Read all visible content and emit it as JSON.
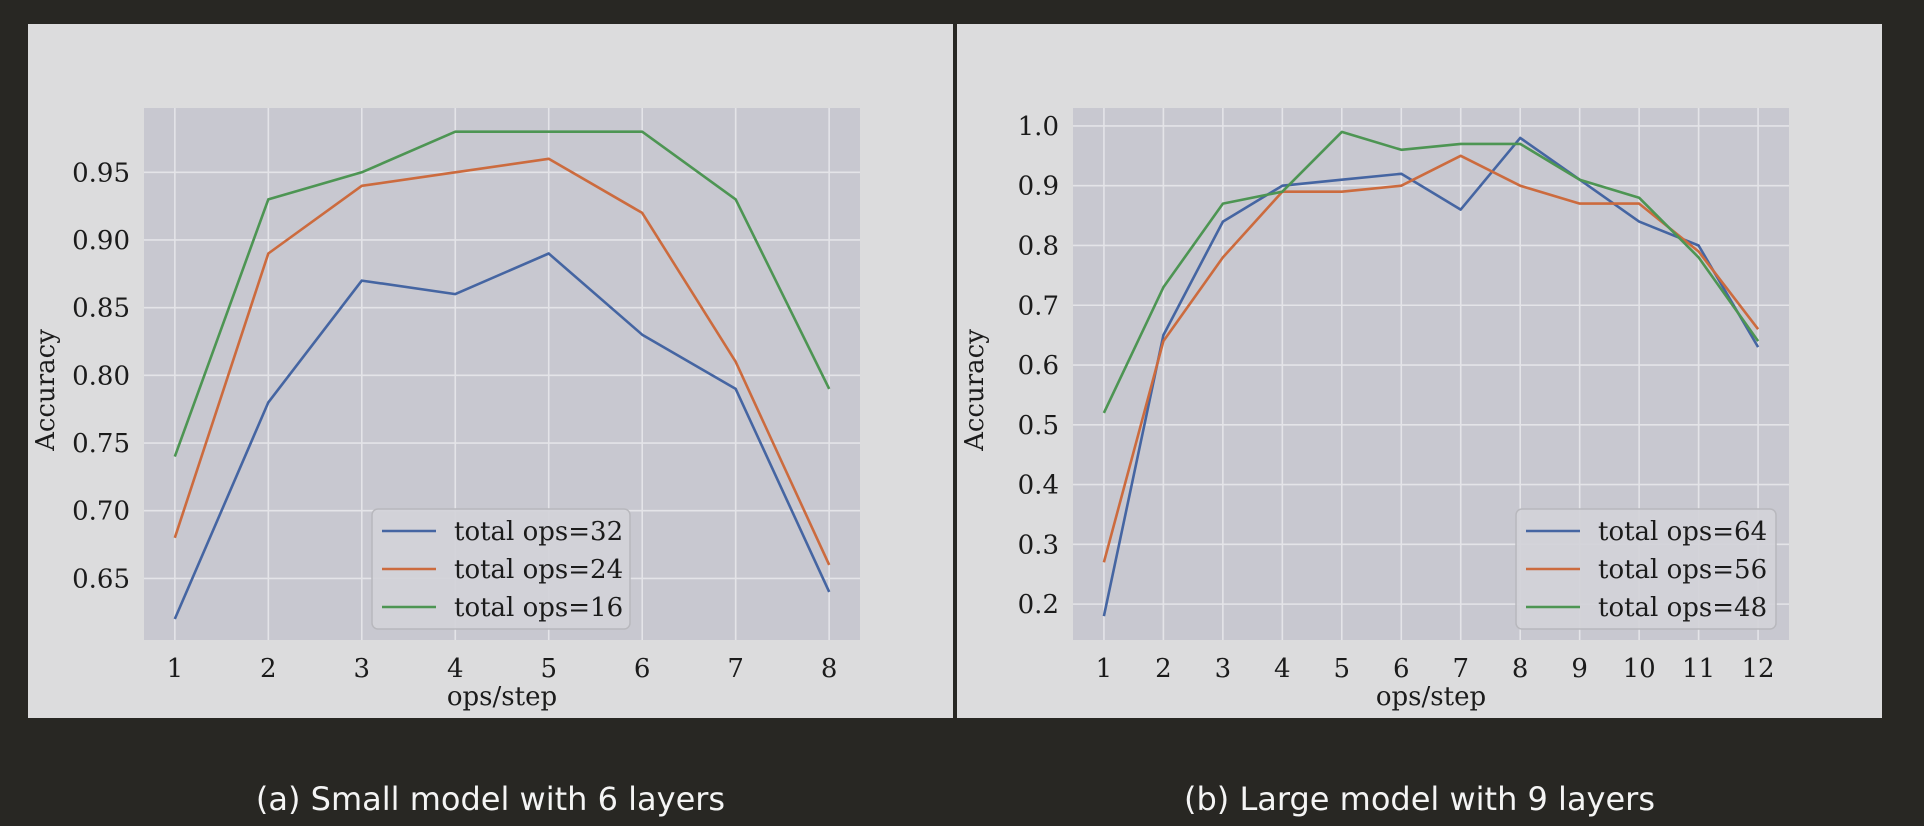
{
  "captions": {
    "a": "(a)  Small model with 6 layers",
    "b": "(b)  Large model with 9 layers"
  },
  "colors": {
    "panel_bg": "#dcdcdd",
    "plot_bg": "#c8c8d0",
    "grid": "#e4e4e8",
    "series": [
      "#4565a2",
      "#cc6b3e",
      "#4d9553"
    ]
  },
  "chart_data": [
    {
      "type": "line",
      "title": "",
      "xlabel": "ops/step",
      "ylabel": "Accuracy",
      "x": [
        1,
        2,
        3,
        4,
        5,
        6,
        7,
        8
      ],
      "xlim": [
        0.67,
        8.33
      ],
      "ylim": [
        0.6045,
        0.9975
      ],
      "yticks": [
        0.65,
        0.7,
        0.75,
        0.8,
        0.85,
        0.9,
        0.95
      ],
      "ytick_labels": [
        "0.65",
        "0.70",
        "0.75",
        "0.80",
        "0.85",
        "0.90",
        "0.95"
      ],
      "grid": true,
      "legend_position": "lower-center",
      "series": [
        {
          "name": "total ops=32",
          "values": [
            0.62,
            0.78,
            0.87,
            0.86,
            0.89,
            0.83,
            0.79,
            0.64
          ]
        },
        {
          "name": "total ops=24",
          "values": [
            0.68,
            0.89,
            0.94,
            0.95,
            0.96,
            0.92,
            0.81,
            0.66
          ]
        },
        {
          "name": "total ops=16",
          "values": [
            0.74,
            0.93,
            0.95,
            0.98,
            0.98,
            0.98,
            0.93,
            0.79
          ]
        }
      ]
    },
    {
      "type": "line",
      "title": "",
      "xlabel": "ops/step",
      "ylabel": "Accuracy",
      "x": [
        1,
        2,
        3,
        4,
        5,
        6,
        7,
        8,
        9,
        10,
        11,
        12
      ],
      "xlim": [
        0.48,
        12.52
      ],
      "ylim": [
        0.14,
        1.03
      ],
      "yticks": [
        0.2,
        0.3,
        0.4,
        0.5,
        0.6,
        0.7,
        0.8,
        0.9,
        1.0
      ],
      "ytick_labels": [
        "0.2",
        "0.3",
        "0.4",
        "0.5",
        "0.6",
        "0.7",
        "0.8",
        "0.9",
        "1.0"
      ],
      "grid": true,
      "legend_position": "lower-right",
      "series": [
        {
          "name": "total ops=64",
          "values": [
            0.18,
            0.65,
            0.84,
            0.9,
            0.91,
            0.92,
            0.86,
            0.98,
            0.91,
            0.84,
            0.8,
            0.63
          ]
        },
        {
          "name": "total ops=56",
          "values": [
            0.27,
            0.64,
            0.78,
            0.89,
            0.89,
            0.9,
            0.95,
            0.9,
            0.87,
            0.87,
            0.79,
            0.66
          ]
        },
        {
          "name": "total ops=48",
          "values": [
            0.52,
            0.73,
            0.87,
            0.89,
            0.99,
            0.96,
            0.97,
            0.97,
            0.91,
            0.88,
            0.78,
            0.64
          ]
        }
      ]
    }
  ]
}
